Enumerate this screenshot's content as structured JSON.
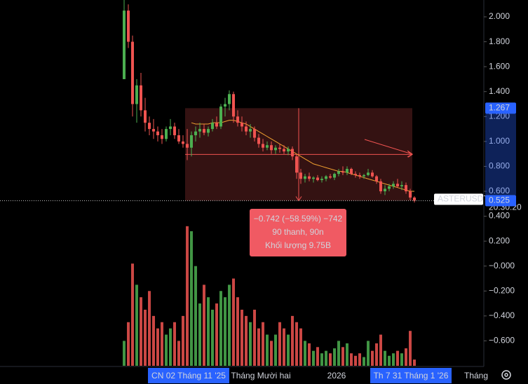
{
  "chart_data": {
    "type": "candlestick",
    "symbol": "ASTERUSDT",
    "up_color": "#4caf50",
    "down_color": "#ef5350",
    "ma_color": "#f0a030",
    "ylim": [
      -0.8,
      2.135
    ],
    "yticks": [
      {
        "value": 2.0,
        "label": "2.000"
      },
      {
        "value": 1.8,
        "label": "1.800"
      },
      {
        "value": 1.6,
        "label": "1.600"
      },
      {
        "value": 1.4,
        "label": "1.400"
      },
      {
        "value": 1.2,
        "label": "1.200"
      },
      {
        "value": 1.0,
        "label": "1.000"
      },
      {
        "value": 0.8,
        "label": "0.800"
      },
      {
        "value": 0.6,
        "label": "0.600"
      },
      {
        "value": 0.4,
        "label": "0.400"
      },
      {
        "value": 0.2,
        "label": "0.200"
      },
      {
        "value": 0,
        "label": "−0.000"
      },
      {
        "value": -0.2,
        "label": "−0.200"
      },
      {
        "value": -0.4,
        "label": "−0.400"
      },
      {
        "value": -0.6,
        "label": "−0.600"
      }
    ],
    "open": [
      1.5,
      2.05,
      1.8,
      1.3,
      1.45,
      1.25,
      1.15,
      1.1,
      1.08,
      1.05,
      1.02,
      1.1,
      1.12,
      1.05,
      1.0,
      0.98,
      0.95,
      1.05,
      1.08,
      1.1,
      1.07,
      1.1,
      1.15,
      1.12,
      1.28,
      1.3,
      1.38,
      1.2,
      1.15,
      1.12,
      1.08,
      1.1,
      1.03,
      0.98,
      0.95,
      0.97,
      0.93,
      0.95,
      0.94,
      0.92,
      0.94,
      0.88,
      0.75,
      0.7,
      0.72,
      0.7,
      0.71,
      0.69,
      0.7,
      0.72,
      0.71,
      0.74,
      0.76,
      0.75,
      0.78,
      0.74,
      0.73,
      0.72,
      0.73,
      0.75,
      0.72,
      0.68,
      0.6,
      0.62,
      0.64,
      0.66,
      0.64,
      0.65,
      0.6,
      0.55
    ],
    "high": [
      2.14,
      2.1,
      1.85,
      1.5,
      1.55,
      1.35,
      1.2,
      1.18,
      1.12,
      1.1,
      1.12,
      1.18,
      1.15,
      1.1,
      1.05,
      1.1,
      1.08,
      1.12,
      1.15,
      1.14,
      1.12,
      1.18,
      1.2,
      1.3,
      1.35,
      1.41,
      1.4,
      1.25,
      1.2,
      1.16,
      1.14,
      1.12,
      1.06,
      1.02,
      1.0,
      1.0,
      0.97,
      0.98,
      0.97,
      0.96,
      0.96,
      0.9,
      0.78,
      0.74,
      0.75,
      0.72,
      0.73,
      0.72,
      0.73,
      0.74,
      0.75,
      0.78,
      0.8,
      0.8,
      0.79,
      0.76,
      0.75,
      0.74,
      0.78,
      0.77,
      0.73,
      0.7,
      0.65,
      0.66,
      0.68,
      0.7,
      0.68,
      0.67,
      0.62,
      0.56
    ],
    "low": [
      1.5,
      1.75,
      1.2,
      1.15,
      1.2,
      1.08,
      1.05,
      1.02,
      1.0,
      0.98,
      1.0,
      1.05,
      1.02,
      0.98,
      0.95,
      0.85,
      0.88,
      1.0,
      1.03,
      1.05,
      1.04,
      1.08,
      1.1,
      1.1,
      1.2,
      1.25,
      1.15,
      1.12,
      1.08,
      1.05,
      1.03,
      1.0,
      0.95,
      0.92,
      0.93,
      0.9,
      0.9,
      0.91,
      0.9,
      0.89,
      0.85,
      0.7,
      0.66,
      0.67,
      0.68,
      0.67,
      0.68,
      0.67,
      0.68,
      0.7,
      0.69,
      0.72,
      0.73,
      0.73,
      0.73,
      0.71,
      0.7,
      0.7,
      0.72,
      0.71,
      0.66,
      0.58,
      0.57,
      0.6,
      0.62,
      0.63,
      0.61,
      0.58,
      0.53,
      0.51
    ],
    "close": [
      2.05,
      1.8,
      1.3,
      1.45,
      1.25,
      1.15,
      1.1,
      1.08,
      1.05,
      1.02,
      1.1,
      1.12,
      1.05,
      1.0,
      0.98,
      0.95,
      1.05,
      1.08,
      1.1,
      1.07,
      1.1,
      1.15,
      1.12,
      1.28,
      1.3,
      1.38,
      1.2,
      1.15,
      1.12,
      1.08,
      1.1,
      1.03,
      0.98,
      0.95,
      0.97,
      0.93,
      0.95,
      0.94,
      0.92,
      0.94,
      0.88,
      0.75,
      0.7,
      0.72,
      0.7,
      0.71,
      0.69,
      0.7,
      0.72,
      0.71,
      0.74,
      0.76,
      0.75,
      0.78,
      0.74,
      0.73,
      0.72,
      0.73,
      0.75,
      0.72,
      0.68,
      0.6,
      0.62,
      0.64,
      0.66,
      0.64,
      0.65,
      0.6,
      0.55,
      0.525
    ],
    "volume": [
      -0.6,
      -0.45,
      0.02,
      -0.15,
      -0.25,
      -0.35,
      -0.2,
      -0.4,
      -0.5,
      -0.45,
      -0.55,
      -0.5,
      -0.45,
      -0.6,
      -0.4,
      0.32,
      0.28,
      0.0,
      -0.3,
      -0.15,
      -0.25,
      -0.35,
      -0.3,
      -0.2,
      -0.25,
      -0.15,
      -0.1,
      -0.25,
      -0.35,
      -0.4,
      -0.45,
      -0.35,
      -0.5,
      -0.45,
      -0.55,
      -0.6,
      -0.55,
      -0.45,
      -0.5,
      -0.55,
      -0.4,
      -0.45,
      -0.5,
      -0.6,
      -0.62,
      -0.68,
      -0.65,
      -0.7,
      -0.68,
      -0.7,
      -0.66,
      -0.6,
      -0.65,
      -0.62,
      -0.7,
      -0.72,
      -0.7,
      -0.73,
      -0.6,
      -0.68,
      -0.62,
      -0.55,
      -0.68,
      -0.72,
      -0.7,
      -0.68,
      -0.7,
      -0.66,
      -0.52,
      -0.75
    ],
    "ma": [
      null,
      null,
      null,
      null,
      null,
      null,
      null,
      null,
      null,
      null,
      null,
      null,
      null,
      null,
      null,
      null,
      1.15,
      1.14,
      1.14,
      1.14,
      1.14,
      1.15,
      1.15,
      1.15,
      1.16,
      1.17,
      1.17,
      1.16,
      1.15,
      1.14,
      1.12,
      1.1,
      1.08,
      1.06,
      1.04,
      1.02,
      1.0,
      0.98,
      0.96,
      0.94,
      0.92,
      0.9,
      0.88,
      0.86,
      0.84,
      0.82,
      0.81,
      0.8,
      0.79,
      0.78,
      0.77,
      0.76,
      0.76,
      0.75,
      0.74,
      0.73,
      0.72,
      0.71,
      0.7,
      0.69,
      0.68,
      0.67,
      0.66,
      0.65,
      0.64,
      0.63,
      0.62,
      0.61,
      0.6,
      0.6
    ],
    "last_price": {
      "value": 0.525,
      "label": "0.525"
    },
    "countdown": "20:30:20",
    "measure": {
      "start": 15,
      "end": 68,
      "top": {
        "value": 1.267,
        "label": "1.267"
      },
      "change": "−0.742 (−58.59%) −742",
      "bars": "90 thanh, 90n",
      "volume": "Khối lượng 9.75B"
    },
    "x_labels": [
      "CN 02 Tháng 11 '25",
      "Tháng Mười hai",
      "2026",
      "Th 7 31 Tháng 1 '26",
      "Tháng"
    ],
    "x_labels_highlighted": [
      true,
      false,
      false,
      true,
      false
    ]
  }
}
